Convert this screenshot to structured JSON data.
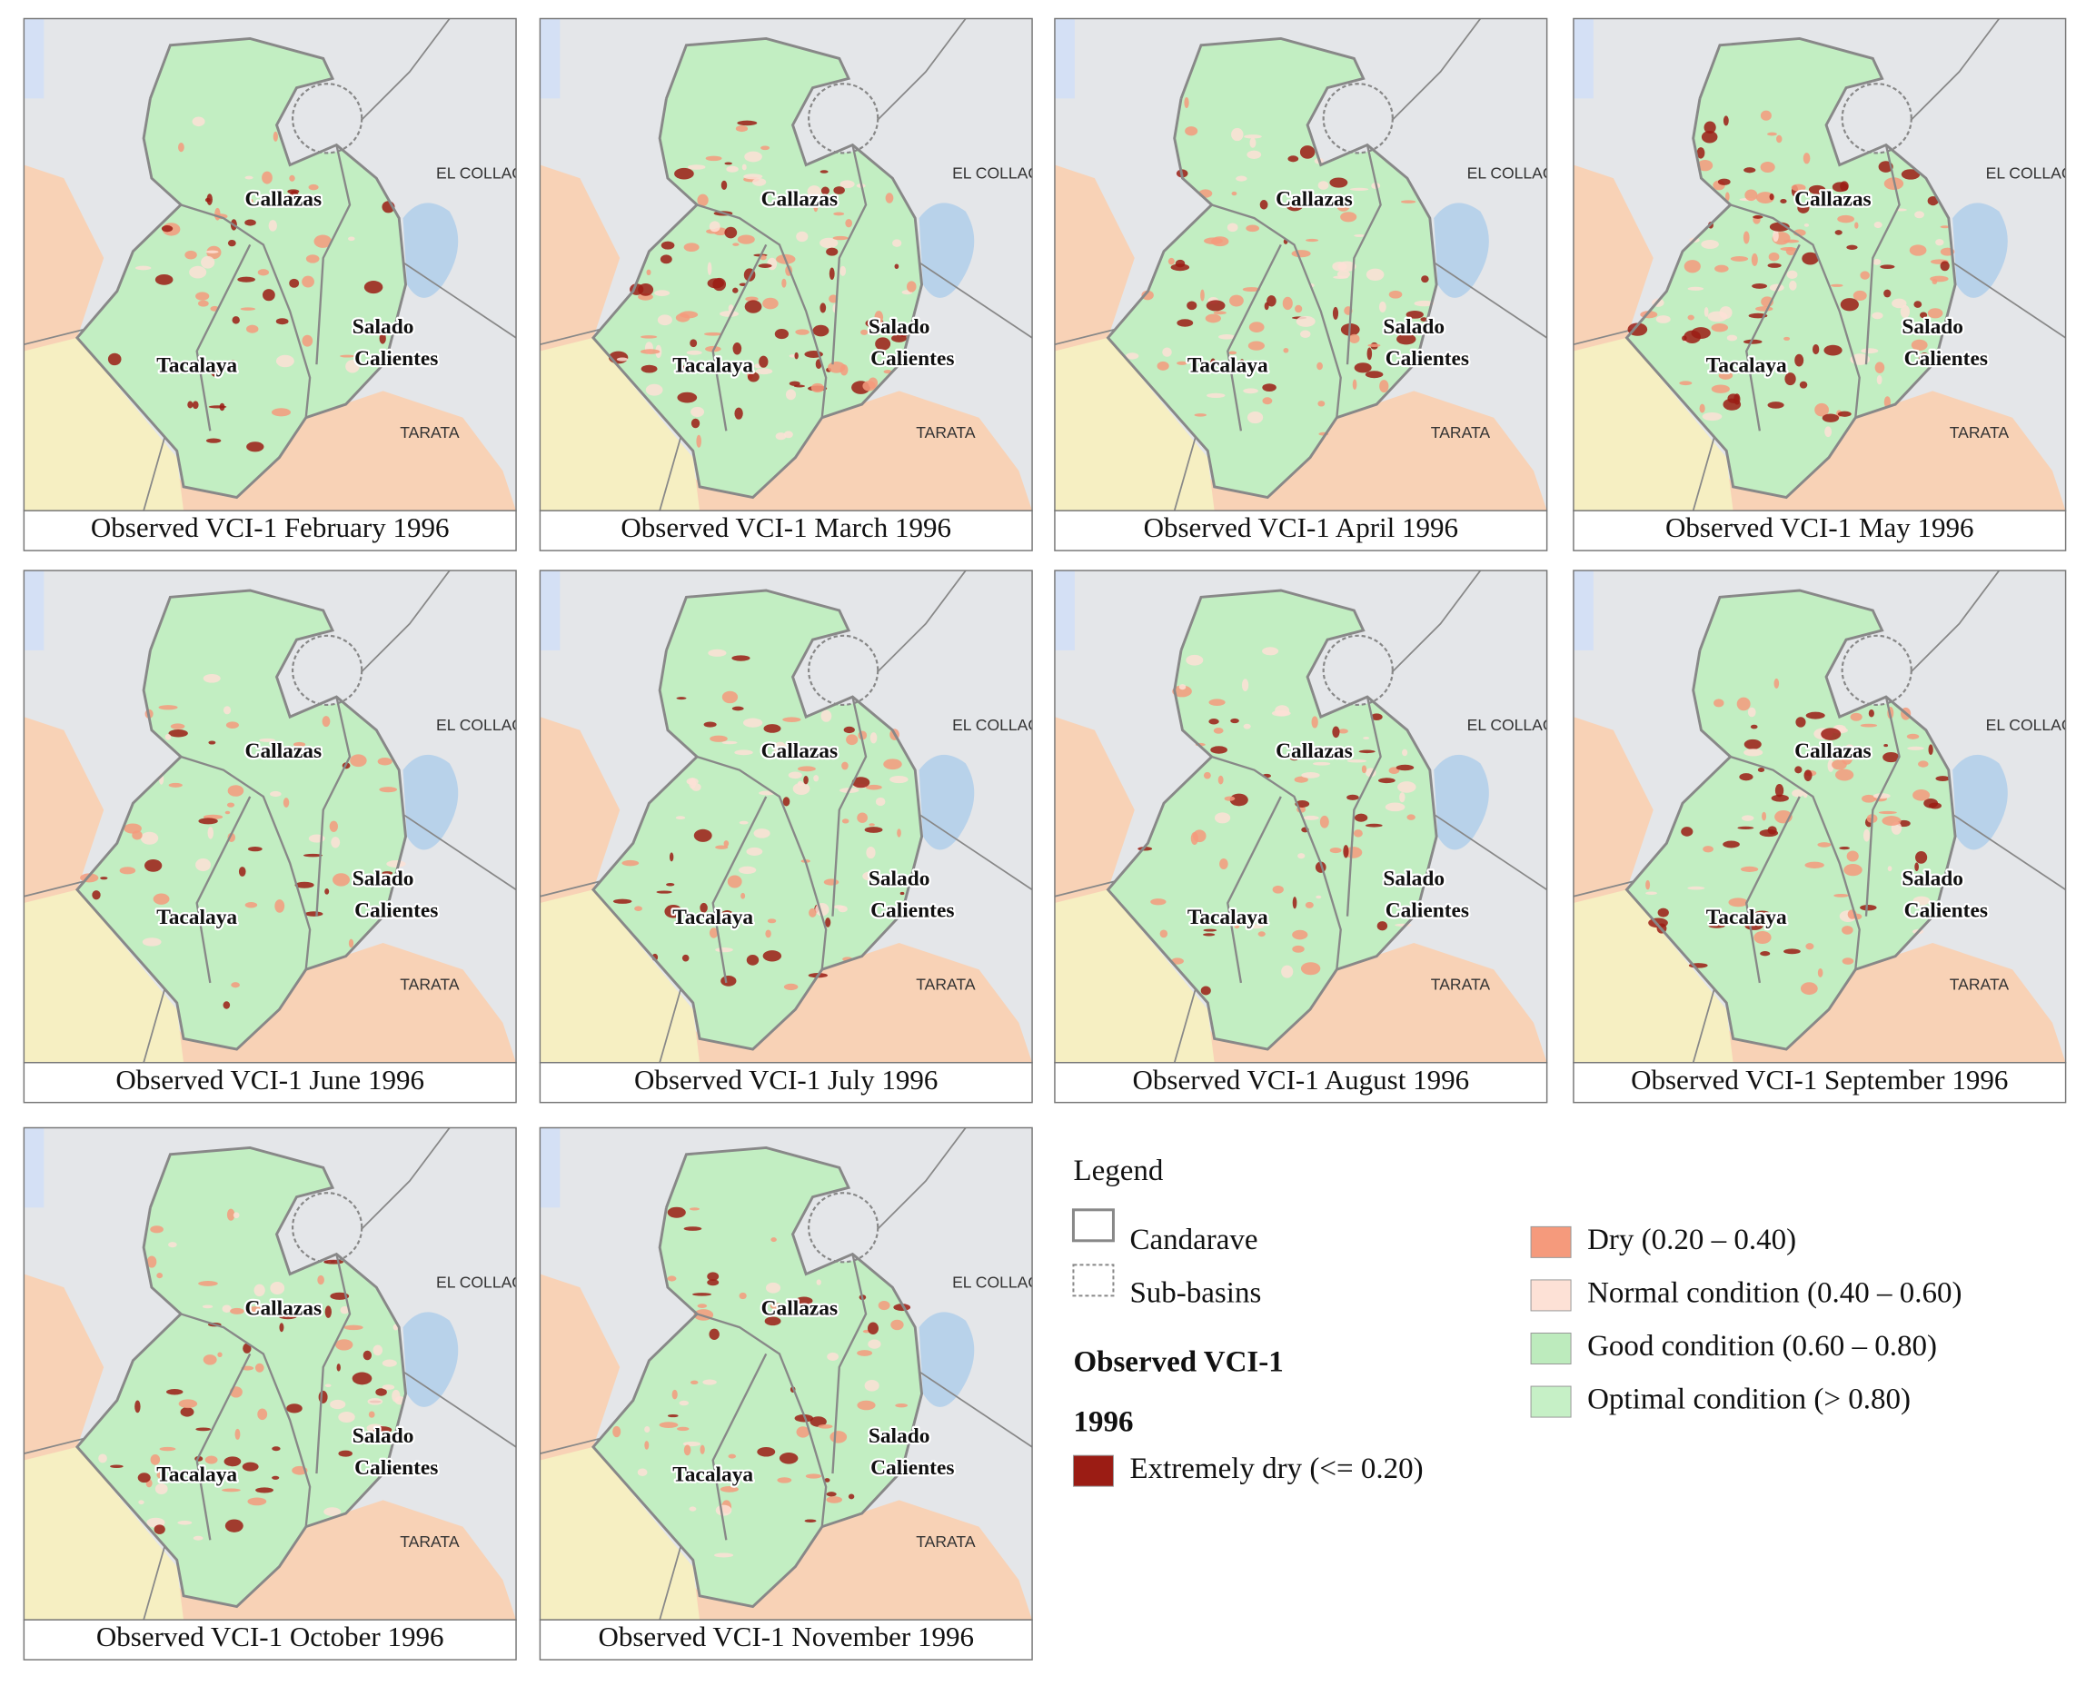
{
  "panels": [
    {
      "caption": "Observed VCI-1 February 1996"
    },
    {
      "caption": "Observed VCI-1 March 1996"
    },
    {
      "caption": "Observed VCI-1 April 1996"
    },
    {
      "caption": "Observed VCI-1 May 1996"
    },
    {
      "caption": "Observed VCI-1 June 1996"
    },
    {
      "caption": "Observed VCI-1 July 1996"
    },
    {
      "caption": "Observed VCI-1 August 1996"
    },
    {
      "caption": "Observed VCI-1 September 1996"
    },
    {
      "caption": "Observed VCI-1 October 1996"
    },
    {
      "caption": "Observed VCI-1 November 1996"
    }
  ],
  "map_labels": {
    "callazas": "Callazas",
    "tacalaya": "Tacalaya",
    "salado": "Salado",
    "calientes": "Calientes",
    "el_collao": "EL COLLAO",
    "tarata": "TARATA"
  },
  "legend": {
    "title": "Legend",
    "boundaries": [
      {
        "label": "Candarave"
      },
      {
        "label": "Sub-basins"
      }
    ],
    "heading": "Observed VCI-1",
    "year": "1996",
    "classes": [
      {
        "label": "Extremely dry (<= 0.20)",
        "color": "#9b1c14"
      },
      {
        "label": "Dry (0.20 – 0.40)",
        "color": "#f59a7c"
      },
      {
        "label": "Normal condition (0.40 – 0.60)",
        "color": "#fde1d6"
      },
      {
        "label": "Good condition (0.60 – 0.80)",
        "color": "#bdebbd"
      },
      {
        "label": "Optimal condition (> 0.80)",
        "color": "#c6f0c6"
      }
    ]
  }
}
